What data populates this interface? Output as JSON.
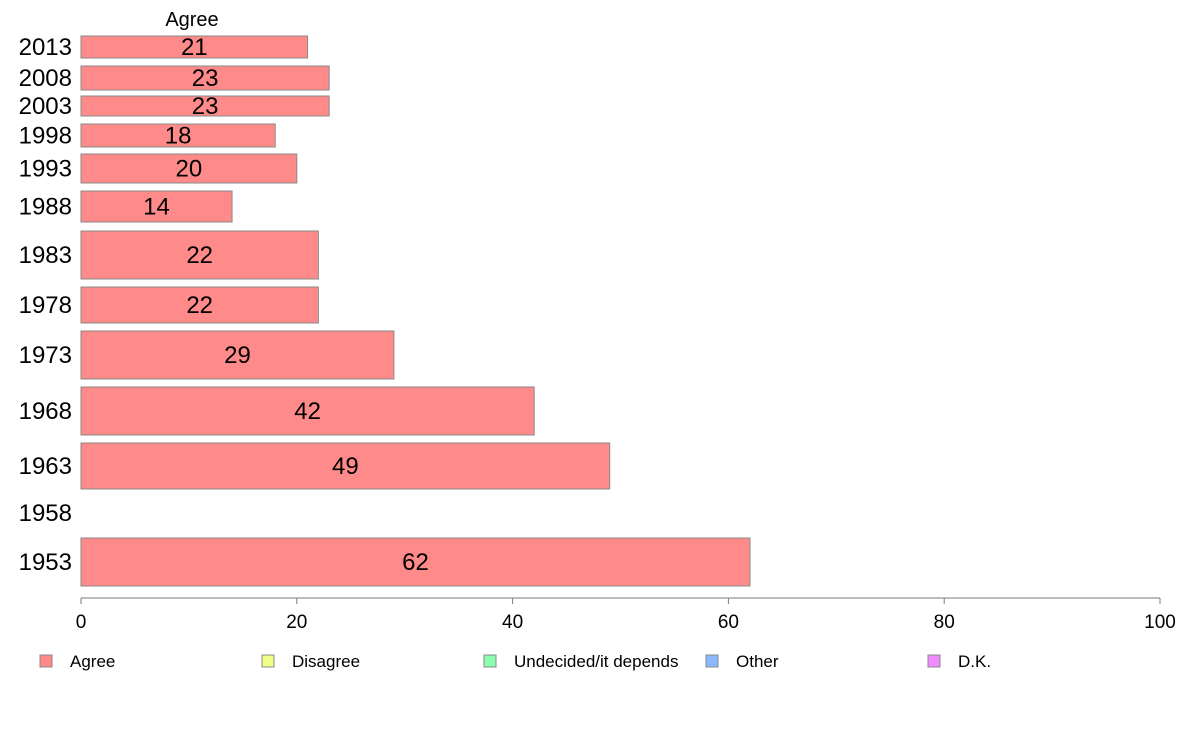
{
  "chart_data": {
    "type": "bar",
    "orientation": "horizontal",
    "column_header": "Agree",
    "categories": [
      "2013",
      "2008",
      "2003",
      "1998",
      "1993",
      "1988",
      "1983",
      "1978",
      "1973",
      "1968",
      "1963",
      "1958",
      "1953"
    ],
    "series": [
      {
        "name": "Agree",
        "values": [
          21,
          23,
          23,
          18,
          20,
          14,
          22,
          22,
          29,
          42,
          49,
          null,
          62
        ],
        "color": "#ff8a8a"
      }
    ],
    "data_labels": [
      "21",
      "23",
      "23",
      "18",
      "20",
      "14",
      "22",
      "22",
      "29",
      "42",
      "49",
      "",
      "62"
    ],
    "xlim": [
      0,
      100
    ],
    "xticks": [
      0,
      20,
      40,
      60,
      80,
      100
    ],
    "grid": false,
    "legend_position": "bottom",
    "legend": [
      {
        "label": "Agree",
        "color": "#ff8a8a"
      },
      {
        "label": "Disagree",
        "color": "#f0ff8a"
      },
      {
        "label": "Undecided/it depends",
        "color": "#8affb0"
      },
      {
        "label": "Other",
        "color": "#8ab8ff"
      },
      {
        "label": "D.K.",
        "color": "#f08aff"
      }
    ]
  }
}
